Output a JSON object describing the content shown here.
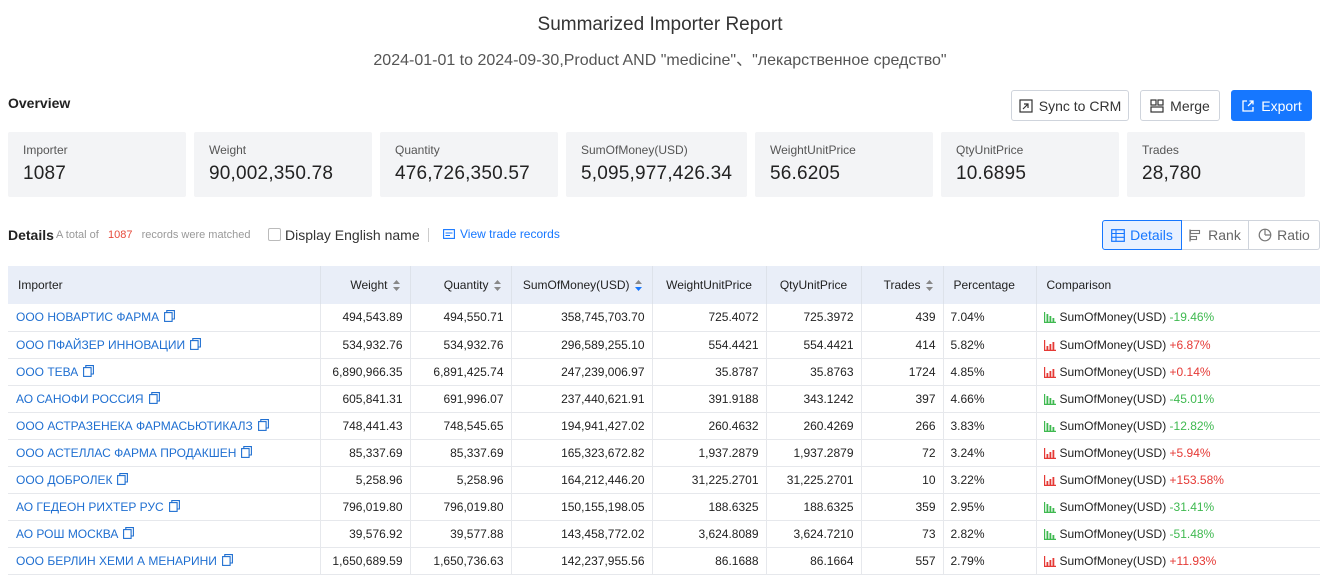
{
  "report": {
    "title": "Summarized Importer Report",
    "subtitle": "2024-01-01 to 2024-09-30,Product AND \"medicine\"、\"лекарственное средство\""
  },
  "overview": {
    "label": "Overview",
    "buttons": {
      "sync": "Sync to CRM",
      "merge": "Merge",
      "export": "Export"
    },
    "cards": [
      {
        "key": "Importer",
        "value": "1087"
      },
      {
        "key": "Weight",
        "value": "90,002,350.78"
      },
      {
        "key": "Quantity",
        "value": "476,726,350.57"
      },
      {
        "key": "SumOfMoney(USD)",
        "value": "5,095,977,426.34"
      },
      {
        "key": "WeightUnitPrice",
        "value": "56.6205"
      },
      {
        "key": "QtyUnitPrice",
        "value": "10.6895"
      },
      {
        "key": "Trades",
        "value": "28,780"
      }
    ]
  },
  "details": {
    "label": "Details",
    "total_prefix": "A total of",
    "total_count": "1087",
    "total_suffix": "records were matched",
    "english_name_label": "Display English name",
    "view_trade_records": "View trade records",
    "tabs": {
      "details": "Details",
      "rank": "Rank",
      "ratio": "Ratio"
    }
  },
  "table": {
    "columns": [
      "Importer",
      "Weight",
      "Quantity",
      "SumOfMoney(USD)",
      "WeightUnitPrice",
      "QtyUnitPrice",
      "Trades",
      "Percentage",
      "Comparison"
    ],
    "comparison_metric": "SumOfMoney(USD)",
    "rows": [
      {
        "importer": "ООО НОВАРТИС ФАРМА",
        "weight": "494,543.89",
        "quantity": "494,550.71",
        "sum": "358,745,703.70",
        "wup": "725.4072",
        "qup": "725.3972",
        "trades": "439",
        "pct": "7.04%",
        "change": "-19.46%"
      },
      {
        "importer": "ООО ПФАЙЗЕР ИННОВАЦИИ",
        "weight": "534,932.76",
        "quantity": "534,932.76",
        "sum": "296,589,255.10",
        "wup": "554.4421",
        "qup": "554.4421",
        "trades": "414",
        "pct": "5.82%",
        "change": "+6.87%"
      },
      {
        "importer": "ООО ТЕВА",
        "weight": "6,890,966.35",
        "quantity": "6,891,425.74",
        "sum": "247,239,006.97",
        "wup": "35.8787",
        "qup": "35.8763",
        "trades": "1724",
        "pct": "4.85%",
        "change": "+0.14%"
      },
      {
        "importer": "АО САНОФИ РОССИЯ",
        "weight": "605,841.31",
        "quantity": "691,996.07",
        "sum": "237,440,621.91",
        "wup": "391.9188",
        "qup": "343.1242",
        "trades": "397",
        "pct": "4.66%",
        "change": "-45.01%"
      },
      {
        "importer": "ООО АСТРАЗЕНЕКА ФАРМАСЬЮТИКАЛЗ",
        "weight": "748,441.43",
        "quantity": "748,545.65",
        "sum": "194,941,427.02",
        "wup": "260.4632",
        "qup": "260.4269",
        "trades": "266",
        "pct": "3.83%",
        "change": "-12.82%"
      },
      {
        "importer": "ООО АСТЕЛЛАС ФАРМА ПРОДАКШЕН",
        "weight": "85,337.69",
        "quantity": "85,337.69",
        "sum": "165,323,672.82",
        "wup": "1,937.2879",
        "qup": "1,937.2879",
        "trades": "72",
        "pct": "3.24%",
        "change": "+5.94%"
      },
      {
        "importer": "ООО ДОБРОЛЕК",
        "weight": "5,258.96",
        "quantity": "5,258.96",
        "sum": "164,212,446.20",
        "wup": "31,225.2701",
        "qup": "31,225.2701",
        "trades": "10",
        "pct": "3.22%",
        "change": "+153.58%"
      },
      {
        "importer": "АО ГЕДЕОН РИХТЕР РУС",
        "weight": "796,019.80",
        "quantity": "796,019.80",
        "sum": "150,155,198.05",
        "wup": "188.6325",
        "qup": "188.6325",
        "trades": "359",
        "pct": "2.95%",
        "change": "-31.41%"
      },
      {
        "importer": "АО РОШ МОСКВА",
        "weight": "39,576.92",
        "quantity": "39,577.88",
        "sum": "143,458,772.02",
        "wup": "3,624.8089",
        "qup": "3,624.7210",
        "trades": "73",
        "pct": "2.82%",
        "change": "-51.48%"
      },
      {
        "importer": "ООО БЕРЛИН ХЕМИ А МЕНАРИНИ",
        "weight": "1,650,689.59",
        "quantity": "1,650,736.63",
        "sum": "142,237,955.56",
        "wup": "86.1688",
        "qup": "86.1664",
        "trades": "557",
        "pct": "2.79%",
        "change": "+11.93%"
      }
    ]
  },
  "colors": {
    "accent": "#1677ff",
    "positive": "#e53935",
    "negative": "#3fb950",
    "link": "#1f6fd1"
  },
  "icons": {
    "sync": "crm-sync-icon",
    "merge": "merge-icon",
    "export": "export-icon",
    "details_tab": "table-icon",
    "rank_tab": "bar-rank-icon",
    "ratio_tab": "pie-icon",
    "copy": "copy-icon",
    "sort": "sort-icon",
    "trend_up": "trend-up-chart-icon",
    "trend_down": "trend-down-chart-icon"
  }
}
